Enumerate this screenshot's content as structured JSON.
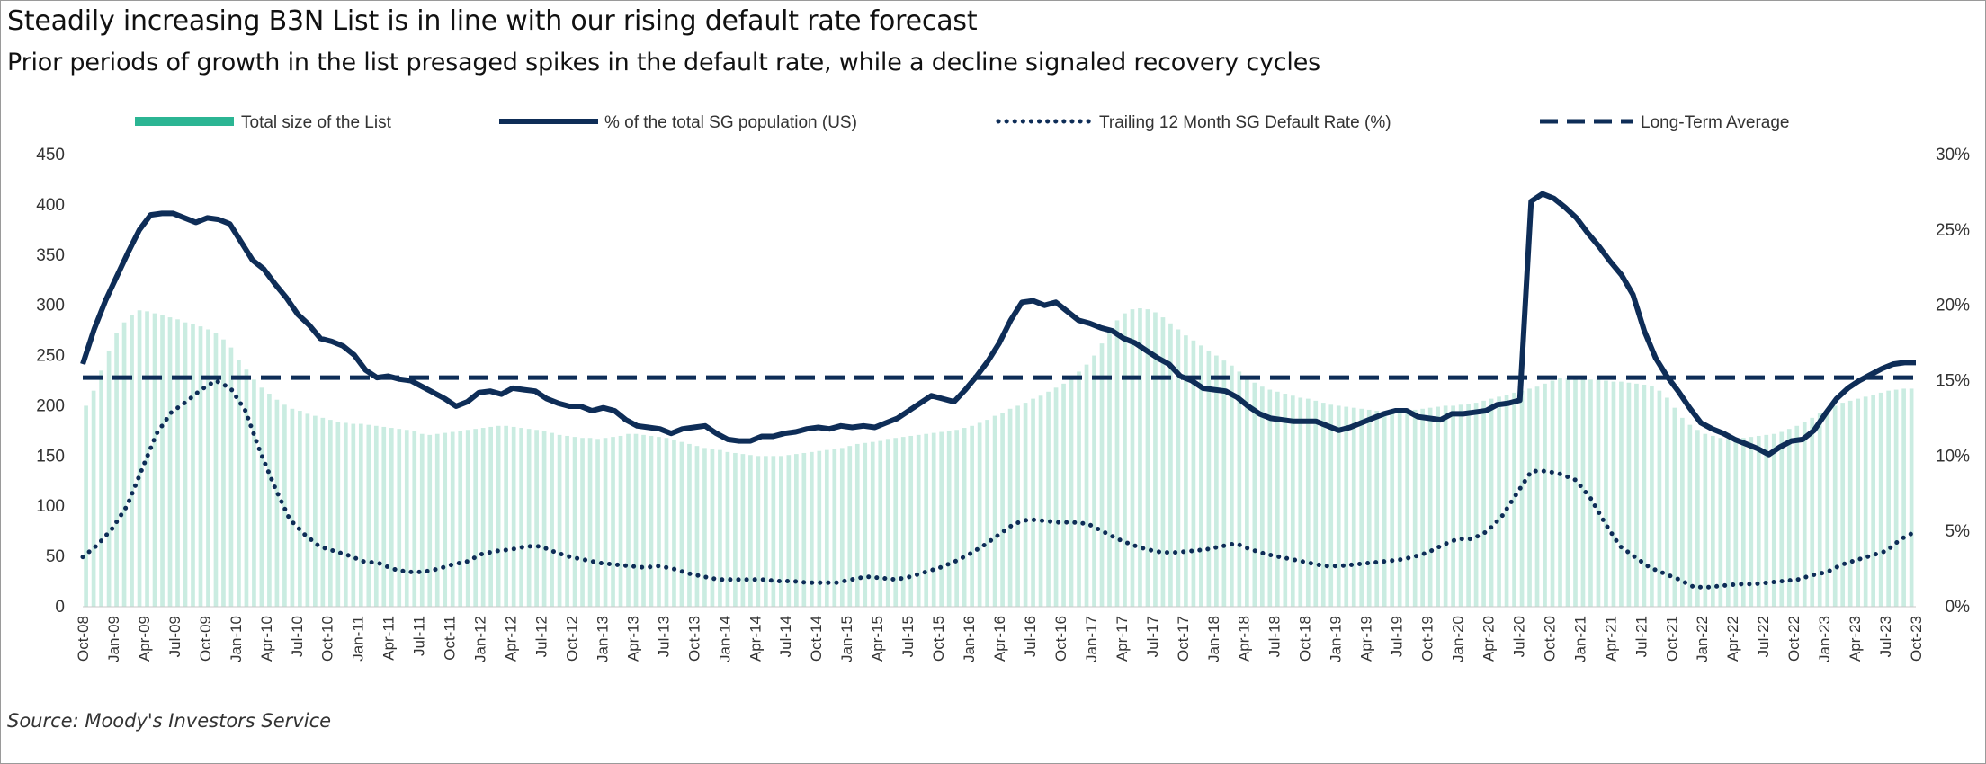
{
  "header": {
    "title": "Steadily increasing B3N List is in line with our rising default rate forecast",
    "subtitle": "Prior periods of growth in the list presaged spikes in the default rate, while a decline signaled recovery cycles"
  },
  "footer": {
    "source": "Source: Moody's Investors Service"
  },
  "colors": {
    "bars": "#9fdcc9",
    "legend_bars": "#2bb593",
    "navy": "#0e2d57",
    "axis_text": "#333333"
  },
  "chart_data": {
    "type": "bar",
    "title": "Steadily increasing B3N List is in line with our rising default rate forecast",
    "subtitle": "Prior periods of growth in the list presaged spikes in the default rate, while a decline signaled recovery cycles",
    "legend": [
      "Total size of the List",
      "% of the total SG population (US)",
      "Trailing 12 Month SG Default Rate (%)",
      "Long-Term Average"
    ],
    "legend_position": "top",
    "y_left": {
      "range": [
        0,
        450
      ],
      "ticks": [
        "0",
        "50",
        "100",
        "150",
        "200",
        "250",
        "300",
        "350",
        "400",
        "450"
      ]
    },
    "y_right": {
      "range": [
        0,
        30
      ],
      "ticks": [
        "0%",
        "5%",
        "10%",
        "15%",
        "20%",
        "25%",
        "30%"
      ]
    },
    "x_ticks": [
      "Oct-08",
      "Jan-09",
      "Apr-09",
      "Jul-09",
      "Oct-09",
      "Jan-10",
      "Apr-10",
      "Jul-10",
      "Oct-10",
      "Jan-11",
      "Apr-11",
      "Jul-11",
      "Oct-11",
      "Jan-12",
      "Apr-12",
      "Jul-12",
      "Oct-12",
      "Jan-13",
      "Apr-13",
      "Jul-13",
      "Oct-13",
      "Jan-14",
      "Apr-14",
      "Jul-14",
      "Oct-14",
      "Jan-15",
      "Apr-15",
      "Jul-15",
      "Oct-15",
      "Jan-16",
      "Apr-16",
      "Jul-16",
      "Oct-16",
      "Jan-17",
      "Apr-17",
      "Jul-17",
      "Oct-17",
      "Jan-18",
      "Apr-18",
      "Jul-18",
      "Oct-18",
      "Jan-19",
      "Apr-19",
      "Jul-19",
      "Oct-19",
      "Jan-20",
      "Apr-20",
      "Jul-20",
      "Oct-20",
      "Jan-21",
      "Apr-21",
      "Jul-21",
      "Oct-21",
      "Jan-22",
      "Apr-22",
      "Jul-22",
      "Oct-22",
      "Jan-23",
      "Apr-23",
      "Jul-23",
      "Oct-23"
    ],
    "series": [
      {
        "name": "Total size of the List",
        "type": "bar",
        "axis": "left",
        "values": [
          200,
          215,
          235,
          255,
          272,
          283,
          290,
          295,
          294,
          292,
          290,
          288,
          286,
          283,
          281,
          279,
          276,
          272,
          266,
          258,
          246,
          236,
          226,
          218,
          212,
          206,
          201,
          197,
          195,
          192,
          190,
          188,
          186,
          184,
          183,
          182,
          182,
          181,
          180,
          179,
          178,
          177,
          176,
          175,
          172,
          171,
          172,
          173,
          174,
          175,
          176,
          177,
          178,
          179,
          180,
          180,
          179,
          178,
          177,
          176,
          175,
          173,
          171,
          170,
          169,
          168,
          168,
          167,
          168,
          169,
          170,
          172,
          172,
          171,
          170,
          169,
          168,
          166,
          164,
          162,
          160,
          158,
          157,
          156,
          154,
          153,
          152,
          151,
          150,
          150,
          150,
          150,
          151,
          152,
          153,
          154,
          155,
          156,
          157,
          158,
          160,
          162,
          163,
          164,
          165,
          167,
          168,
          169,
          170,
          171,
          172,
          173,
          174,
          175,
          176,
          178,
          180,
          183,
          186,
          190,
          193,
          197,
          200,
          203,
          207,
          210,
          214,
          218,
          222,
          228,
          234,
          241,
          250,
          262,
          275,
          285,
          292,
          296,
          297,
          296,
          293,
          288,
          282,
          276,
          270,
          265,
          260,
          255,
          250,
          245,
          240,
          234,
          228,
          223,
          219,
          216,
          214,
          212,
          210,
          208,
          207,
          205,
          203,
          201,
          200,
          199,
          198,
          197,
          196,
          195,
          194,
          194,
          194,
          195,
          196,
          197,
          198,
          199,
          200,
          200,
          201,
          202,
          203,
          205,
          207,
          209,
          211,
          213,
          215,
          217,
          219,
          222,
          225,
          228,
          228,
          227,
          226,
          226,
          226,
          225,
          224,
          224,
          223,
          222,
          221,
          220,
          215,
          208,
          198,
          188,
          181,
          176,
          172,
          170,
          168,
          167,
          167,
          168,
          169,
          170,
          171,
          172,
          174,
          177,
          180,
          184,
          188,
          193,
          197,
          200,
          203,
          205,
          207,
          209,
          211,
          213,
          215,
          216,
          217,
          217
        ]
      },
      {
        "name": "% of the total SG population (US)",
        "type": "line",
        "axis": "right",
        "values": [
          16.1,
          18.4,
          20.3,
          21.9,
          23.5,
          25.0,
          26.0,
          26.1,
          26.1,
          25.8,
          25.5,
          25.8,
          25.7,
          25.4,
          24.2,
          23.0,
          22.4,
          21.4,
          20.5,
          19.4,
          18.7,
          17.8,
          17.6,
          17.3,
          16.7,
          15.7,
          15.2,
          15.3,
          15.1,
          15.0,
          14.6,
          14.2,
          13.8,
          13.3,
          13.6,
          14.2,
          14.3,
          14.1,
          14.5,
          14.4,
          14.3,
          13.8,
          13.5,
          13.3,
          13.3,
          13.0,
          13.2,
          13.0,
          12.4,
          12.0,
          11.9,
          11.8,
          11.5,
          11.8,
          11.9,
          12.0,
          11.5,
          11.1,
          11.0,
          11.0,
          11.3,
          11.3,
          11.5,
          11.6,
          11.8,
          11.9,
          11.8,
          12.0,
          11.9,
          12.0,
          11.9,
          12.2,
          12.5,
          13.0,
          13.5,
          14.0,
          13.8,
          13.6,
          14.4,
          15.3,
          16.3,
          17.5,
          19.0,
          20.2,
          20.3,
          20.0,
          20.2,
          19.6,
          19.0,
          18.8,
          18.5,
          18.3,
          17.8,
          17.5,
          17.0,
          16.5,
          16.1,
          15.3,
          15.0,
          14.5,
          14.4,
          14.3,
          13.9,
          13.3,
          12.8,
          12.5,
          12.4,
          12.3,
          12.3,
          12.3,
          12.0,
          11.7,
          11.9,
          12.2,
          12.5,
          12.8,
          13.0,
          13.0,
          12.6,
          12.5,
          12.4,
          12.8,
          12.8,
          12.9,
          13.0,
          13.4,
          13.5,
          13.7,
          26.9,
          27.4,
          27.1,
          26.5,
          25.8,
          24.8,
          23.9,
          22.9,
          22.0,
          20.7,
          18.3,
          16.5,
          15.3,
          14.3,
          13.2,
          12.2,
          11.8,
          11.5,
          11.1,
          10.8,
          10.5,
          10.1,
          10.6,
          11.0,
          11.1,
          11.7,
          12.8,
          13.8,
          14.5,
          15.0,
          15.4,
          15.8,
          16.1,
          16.2,
          16.2
        ]
      },
      {
        "name": "Trailing 12 Month SG Default Rate (%)",
        "type": "line",
        "style": "dotted",
        "axis": "right",
        "values": [
          3.3,
          4.1,
          5.2,
          6.7,
          9.1,
          11.5,
          12.9,
          13.6,
          14.4,
          15.0,
          14.5,
          13.0,
          10.3,
          7.9,
          5.8,
          4.8,
          4.0,
          3.7,
          3.4,
          3.0,
          2.9,
          2.5,
          2.3,
          2.3,
          2.5,
          2.8,
          3.0,
          3.5,
          3.7,
          3.8,
          4.0,
          4.0,
          3.6,
          3.3,
          3.1,
          2.9,
          2.8,
          2.7,
          2.6,
          2.7,
          2.5,
          2.2,
          2.0,
          1.8,
          1.8,
          1.8,
          1.8,
          1.7,
          1.7,
          1.6,
          1.6,
          1.6,
          1.8,
          2.0,
          1.9,
          1.8,
          2.0,
          2.3,
          2.6,
          3.0,
          3.5,
          4.1,
          4.8,
          5.5,
          5.8,
          5.7,
          5.6,
          5.6,
          5.5,
          5.0,
          4.5,
          4.1,
          3.8,
          3.6,
          3.6,
          3.7,
          3.8,
          4.0,
          4.2,
          3.8,
          3.5,
          3.3,
          3.1,
          2.9,
          2.7,
          2.7,
          2.8,
          2.9,
          3.0,
          3.1,
          3.3,
          3.6,
          4.1,
          4.5,
          4.5,
          5.0,
          6.0,
          7.5,
          9.0,
          9.0,
          8.8,
          8.4,
          7.2,
          5.5,
          4.0,
          3.3,
          2.6,
          2.2,
          1.8,
          1.3,
          1.3,
          1.4,
          1.5,
          1.5,
          1.6,
          1.7,
          1.8,
          2.1,
          2.3,
          2.8,
          3.1,
          3.4,
          3.7,
          4.5,
          5.0
        ]
      },
      {
        "name": "Long-Term Average",
        "type": "line",
        "style": "dashed",
        "axis": "right",
        "values": [
          15.2,
          15.2
        ]
      }
    ]
  }
}
